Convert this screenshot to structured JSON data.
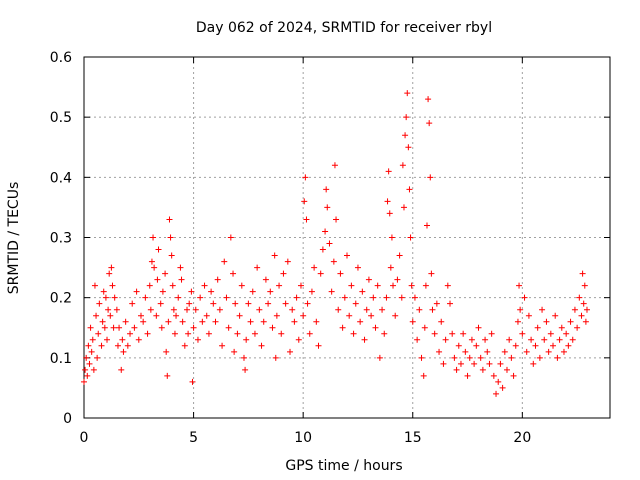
{
  "chart_data": {
    "type": "scatter",
    "title": "Day 062 of 2024, SRMTID for receiver rbyl",
    "xlabel": "GPS time / hours",
    "ylabel": "SRMTID / TECUs",
    "xlim": [
      0,
      24
    ],
    "ylim": [
      0,
      0.6
    ],
    "xticks": [
      0,
      5,
      10,
      15,
      20
    ],
    "xtick_labels": [
      "0",
      "5",
      "10",
      "15",
      "20"
    ],
    "yticks": [
      0,
      0.1,
      0.2,
      0.3,
      0.4,
      0.5,
      0.6
    ],
    "ytick_labels": [
      "0",
      "0.1",
      "0.2",
      "0.3",
      "0.4",
      "0.5",
      "0.6"
    ],
    "grid": true,
    "marker": "+",
    "color": "#ff0000",
    "series": [
      {
        "name": "SRMTID",
        "points": [
          [
            0.0,
            0.06
          ],
          [
            0.05,
            0.08
          ],
          [
            0.1,
            0.1
          ],
          [
            0.15,
            0.07
          ],
          [
            0.2,
            0.12
          ],
          [
            0.25,
            0.09
          ],
          [
            0.3,
            0.15
          ],
          [
            0.35,
            0.11
          ],
          [
            0.4,
            0.13
          ],
          [
            0.45,
            0.08
          ],
          [
            0.5,
            0.22
          ],
          [
            0.55,
            0.17
          ],
          [
            0.6,
            0.1
          ],
          [
            0.65,
            0.14
          ],
          [
            0.7,
            0.19
          ],
          [
            0.8,
            0.12
          ],
          [
            0.85,
            0.16
          ],
          [
            0.9,
            0.21
          ],
          [
            0.95,
            0.15
          ],
          [
            1.0,
            0.2
          ],
          [
            1.05,
            0.13
          ],
          [
            1.1,
            0.18
          ],
          [
            1.15,
            0.24
          ],
          [
            1.2,
            0.17
          ],
          [
            1.25,
            0.25
          ],
          [
            1.3,
            0.22
          ],
          [
            1.35,
            0.15
          ],
          [
            1.4,
            0.2
          ],
          [
            1.5,
            0.18
          ],
          [
            1.55,
            0.12
          ],
          [
            1.6,
            0.15
          ],
          [
            1.7,
            0.08
          ],
          [
            1.75,
            0.13
          ],
          [
            1.8,
            0.11
          ],
          [
            1.9,
            0.16
          ],
          [
            2.0,
            0.12
          ],
          [
            2.1,
            0.14
          ],
          [
            2.2,
            0.19
          ],
          [
            2.3,
            0.15
          ],
          [
            2.4,
            0.21
          ],
          [
            2.5,
            0.13
          ],
          [
            2.6,
            0.17
          ],
          [
            2.7,
            0.16
          ],
          [
            2.8,
            0.2
          ],
          [
            2.9,
            0.14
          ],
          [
            3.0,
            0.22
          ],
          [
            3.05,
            0.18
          ],
          [
            3.1,
            0.26
          ],
          [
            3.15,
            0.3
          ],
          [
            3.2,
            0.25
          ],
          [
            3.3,
            0.17
          ],
          [
            3.35,
            0.23
          ],
          [
            3.4,
            0.28
          ],
          [
            3.5,
            0.19
          ],
          [
            3.55,
            0.15
          ],
          [
            3.6,
            0.21
          ],
          [
            3.7,
            0.24
          ],
          [
            3.75,
            0.11
          ],
          [
            3.8,
            0.07
          ],
          [
            3.85,
            0.16
          ],
          [
            3.9,
            0.33
          ],
          [
            3.95,
            0.3
          ],
          [
            4.0,
            0.27
          ],
          [
            4.05,
            0.22
          ],
          [
            4.1,
            0.18
          ],
          [
            4.15,
            0.14
          ],
          [
            4.2,
            0.17
          ],
          [
            4.3,
            0.2
          ],
          [
            4.4,
            0.25
          ],
          [
            4.45,
            0.23
          ],
          [
            4.5,
            0.16
          ],
          [
            4.6,
            0.12
          ],
          [
            4.7,
            0.18
          ],
          [
            4.75,
            0.14
          ],
          [
            4.8,
            0.19
          ],
          [
            4.9,
            0.21
          ],
          [
            4.95,
            0.06
          ],
          [
            5.0,
            0.15
          ],
          [
            5.1,
            0.18
          ],
          [
            5.2,
            0.13
          ],
          [
            5.3,
            0.2
          ],
          [
            5.4,
            0.16
          ],
          [
            5.5,
            0.22
          ],
          [
            5.6,
            0.17
          ],
          [
            5.7,
            0.14
          ],
          [
            5.8,
            0.21
          ],
          [
            5.9,
            0.19
          ],
          [
            6.0,
            0.16
          ],
          [
            6.1,
            0.23
          ],
          [
            6.2,
            0.18
          ],
          [
            6.3,
            0.12
          ],
          [
            6.4,
            0.26
          ],
          [
            6.5,
            0.2
          ],
          [
            6.6,
            0.15
          ],
          [
            6.7,
            0.3
          ],
          [
            6.8,
            0.24
          ],
          [
            6.85,
            0.11
          ],
          [
            6.9,
            0.19
          ],
          [
            7.0,
            0.14
          ],
          [
            7.1,
            0.17
          ],
          [
            7.2,
            0.22
          ],
          [
            7.3,
            0.1
          ],
          [
            7.35,
            0.08
          ],
          [
            7.4,
            0.13
          ],
          [
            7.5,
            0.19
          ],
          [
            7.6,
            0.16
          ],
          [
            7.7,
            0.21
          ],
          [
            7.8,
            0.14
          ],
          [
            7.9,
            0.25
          ],
          [
            8.0,
            0.18
          ],
          [
            8.1,
            0.12
          ],
          [
            8.2,
            0.16
          ],
          [
            8.3,
            0.23
          ],
          [
            8.4,
            0.19
          ],
          [
            8.5,
            0.21
          ],
          [
            8.6,
            0.15
          ],
          [
            8.7,
            0.27
          ],
          [
            8.75,
            0.1
          ],
          [
            8.8,
            0.17
          ],
          [
            8.9,
            0.22
          ],
          [
            9.0,
            0.14
          ],
          [
            9.1,
            0.24
          ],
          [
            9.2,
            0.19
          ],
          [
            9.3,
            0.26
          ],
          [
            9.4,
            0.11
          ],
          [
            9.5,
            0.18
          ],
          [
            9.6,
            0.16
          ],
          [
            9.7,
            0.2
          ],
          [
            9.8,
            0.13
          ],
          [
            9.9,
            0.22
          ],
          [
            10.0,
            0.17
          ],
          [
            10.05,
            0.36
          ],
          [
            10.1,
            0.4
          ],
          [
            10.15,
            0.33
          ],
          [
            10.2,
            0.19
          ],
          [
            10.3,
            0.14
          ],
          [
            10.4,
            0.21
          ],
          [
            10.5,
            0.25
          ],
          [
            10.6,
            0.16
          ],
          [
            10.7,
            0.12
          ],
          [
            10.8,
            0.24
          ],
          [
            10.9,
            0.28
          ],
          [
            11.0,
            0.31
          ],
          [
            11.05,
            0.38
          ],
          [
            11.1,
            0.35
          ],
          [
            11.2,
            0.29
          ],
          [
            11.3,
            0.21
          ],
          [
            11.4,
            0.26
          ],
          [
            11.45,
            0.42
          ],
          [
            11.5,
            0.33
          ],
          [
            11.6,
            0.18
          ],
          [
            11.7,
            0.24
          ],
          [
            11.8,
            0.15
          ],
          [
            11.9,
            0.2
          ],
          [
            12.0,
            0.27
          ],
          [
            12.1,
            0.17
          ],
          [
            12.2,
            0.22
          ],
          [
            12.3,
            0.14
          ],
          [
            12.4,
            0.19
          ],
          [
            12.5,
            0.25
          ],
          [
            12.6,
            0.16
          ],
          [
            12.7,
            0.21
          ],
          [
            12.8,
            0.13
          ],
          [
            12.9,
            0.18
          ],
          [
            13.0,
            0.23
          ],
          [
            13.1,
            0.17
          ],
          [
            13.2,
            0.2
          ],
          [
            13.3,
            0.15
          ],
          [
            13.4,
            0.22
          ],
          [
            13.5,
            0.1
          ],
          [
            13.6,
            0.18
          ],
          [
            13.7,
            0.14
          ],
          [
            13.8,
            0.2
          ],
          [
            13.85,
            0.36
          ],
          [
            13.9,
            0.41
          ],
          [
            13.95,
            0.34
          ],
          [
            14.0,
            0.25
          ],
          [
            14.05,
            0.3
          ],
          [
            14.1,
            0.22
          ],
          [
            14.2,
            0.17
          ],
          [
            14.3,
            0.23
          ],
          [
            14.4,
            0.27
          ],
          [
            14.5,
            0.2
          ],
          [
            14.55,
            0.42
          ],
          [
            14.6,
            0.35
          ],
          [
            14.65,
            0.47
          ],
          [
            14.7,
            0.5
          ],
          [
            14.75,
            0.54
          ],
          [
            14.8,
            0.45
          ],
          [
            14.85,
            0.38
          ],
          [
            14.9,
            0.3
          ],
          [
            14.95,
            0.22
          ],
          [
            15.0,
            0.16
          ],
          [
            15.1,
            0.2
          ],
          [
            15.2,
            0.13
          ],
          [
            15.3,
            0.18
          ],
          [
            15.4,
            0.1
          ],
          [
            15.5,
            0.07
          ],
          [
            15.55,
            0.15
          ],
          [
            15.6,
            0.22
          ],
          [
            15.65,
            0.32
          ],
          [
            15.7,
            0.53
          ],
          [
            15.75,
            0.49
          ],
          [
            15.8,
            0.4
          ],
          [
            15.85,
            0.24
          ],
          [
            15.9,
            0.18
          ],
          [
            16.0,
            0.14
          ],
          [
            16.1,
            0.19
          ],
          [
            16.2,
            0.11
          ],
          [
            16.3,
            0.16
          ],
          [
            16.4,
            0.09
          ],
          [
            16.5,
            0.13
          ],
          [
            16.6,
            0.22
          ],
          [
            16.7,
            0.19
          ],
          [
            16.8,
            0.14
          ],
          [
            16.9,
            0.1
          ],
          [
            17.0,
            0.08
          ],
          [
            17.1,
            0.12
          ],
          [
            17.2,
            0.09
          ],
          [
            17.3,
            0.14
          ],
          [
            17.4,
            0.11
          ],
          [
            17.5,
            0.07
          ],
          [
            17.6,
            0.1
          ],
          [
            17.7,
            0.13
          ],
          [
            17.8,
            0.09
          ],
          [
            17.9,
            0.12
          ],
          [
            18.0,
            0.15
          ],
          [
            18.1,
            0.1
          ],
          [
            18.2,
            0.08
          ],
          [
            18.3,
            0.13
          ],
          [
            18.4,
            0.11
          ],
          [
            18.5,
            0.09
          ],
          [
            18.6,
            0.14
          ],
          [
            18.7,
            0.07
          ],
          [
            18.8,
            0.04
          ],
          [
            18.9,
            0.06
          ],
          [
            19.0,
            0.09
          ],
          [
            19.1,
            0.05
          ],
          [
            19.2,
            0.11
          ],
          [
            19.3,
            0.08
          ],
          [
            19.4,
            0.13
          ],
          [
            19.5,
            0.1
          ],
          [
            19.6,
            0.07
          ],
          [
            19.7,
            0.12
          ],
          [
            19.8,
            0.16
          ],
          [
            19.85,
            0.22
          ],
          [
            19.9,
            0.18
          ],
          [
            20.0,
            0.14
          ],
          [
            20.1,
            0.2
          ],
          [
            20.2,
            0.11
          ],
          [
            20.3,
            0.17
          ],
          [
            20.4,
            0.13
          ],
          [
            20.5,
            0.09
          ],
          [
            20.6,
            0.12
          ],
          [
            20.7,
            0.15
          ],
          [
            20.8,
            0.1
          ],
          [
            20.9,
            0.18
          ],
          [
            21.0,
            0.13
          ],
          [
            21.1,
            0.16
          ],
          [
            21.2,
            0.11
          ],
          [
            21.3,
            0.14
          ],
          [
            21.4,
            0.12
          ],
          [
            21.5,
            0.17
          ],
          [
            21.6,
            0.1
          ],
          [
            21.7,
            0.13
          ],
          [
            21.8,
            0.15
          ],
          [
            21.9,
            0.11
          ],
          [
            22.0,
            0.14
          ],
          [
            22.1,
            0.12
          ],
          [
            22.2,
            0.16
          ],
          [
            22.3,
            0.13
          ],
          [
            22.4,
            0.18
          ],
          [
            22.5,
            0.15
          ],
          [
            22.6,
            0.2
          ],
          [
            22.7,
            0.17
          ],
          [
            22.75,
            0.24
          ],
          [
            22.8,
            0.19
          ],
          [
            22.85,
            0.22
          ],
          [
            22.9,
            0.16
          ],
          [
            22.95,
            0.18
          ]
        ]
      }
    ]
  }
}
